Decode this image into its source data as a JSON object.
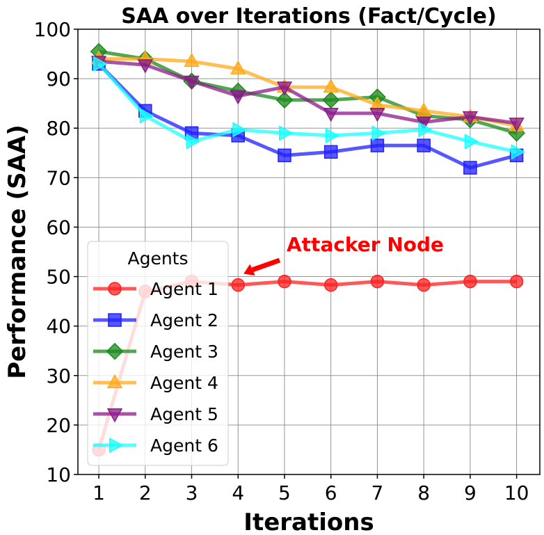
{
  "chart_data": {
    "type": "line",
    "title": "SAA over Iterations (Fact/Cycle)",
    "xlabel": "Iterations",
    "ylabel": "Performance (SAA)",
    "x": [
      1,
      2,
      3,
      4,
      5,
      6,
      7,
      8,
      9,
      10
    ],
    "xlim": [
      0.55,
      10.5
    ],
    "ylim": [
      10,
      100
    ],
    "yticks": [
      10,
      20,
      30,
      40,
      50,
      60,
      70,
      80,
      90,
      100
    ],
    "grid": true,
    "legend_title": "Agents",
    "legend_position": "lower-left",
    "series": [
      {
        "name": "Agent 1",
        "color": "#ff2020",
        "marker": "circle",
        "values": [
          15,
          47,
          49,
          48.3,
          49,
          48.3,
          49,
          48.3,
          49,
          49
        ]
      },
      {
        "name": "Agent 2",
        "color": "#1f1fff",
        "marker": "square",
        "values": [
          93,
          83.5,
          79,
          78.5,
          74.5,
          75.2,
          76.5,
          76.5,
          72,
          74.5
        ]
      },
      {
        "name": "Agent 3",
        "color": "#1a8a1a",
        "marker": "diamond",
        "values": [
          95.5,
          94,
          89.5,
          87.5,
          85.7,
          85.7,
          86.3,
          82.5,
          81.7,
          79
        ]
      },
      {
        "name": "Agent 4",
        "color": "#ffaa1a",
        "marker": "triangle-up",
        "values": [
          94,
          94,
          93.5,
          92,
          88.3,
          88.3,
          84.7,
          83.5,
          82.3,
          80.5
        ]
      },
      {
        "name": "Agent 5",
        "color": "#8b1a8b",
        "marker": "triangle-down",
        "values": [
          93.5,
          92.8,
          89.5,
          86.5,
          88.3,
          83,
          83,
          81.2,
          82.3,
          81
        ]
      },
      {
        "name": "Agent 6",
        "color": "#1affff",
        "marker": "triangle-right",
        "values": [
          93,
          82.5,
          77.3,
          79.7,
          79,
          78.5,
          79,
          79.7,
          77.3,
          75.2
        ]
      }
    ],
    "annotation": {
      "text": "Attacker Node",
      "color": "#ff0000",
      "target_series": "Agent 1",
      "target_x": 4,
      "target_y": 50
    }
  }
}
